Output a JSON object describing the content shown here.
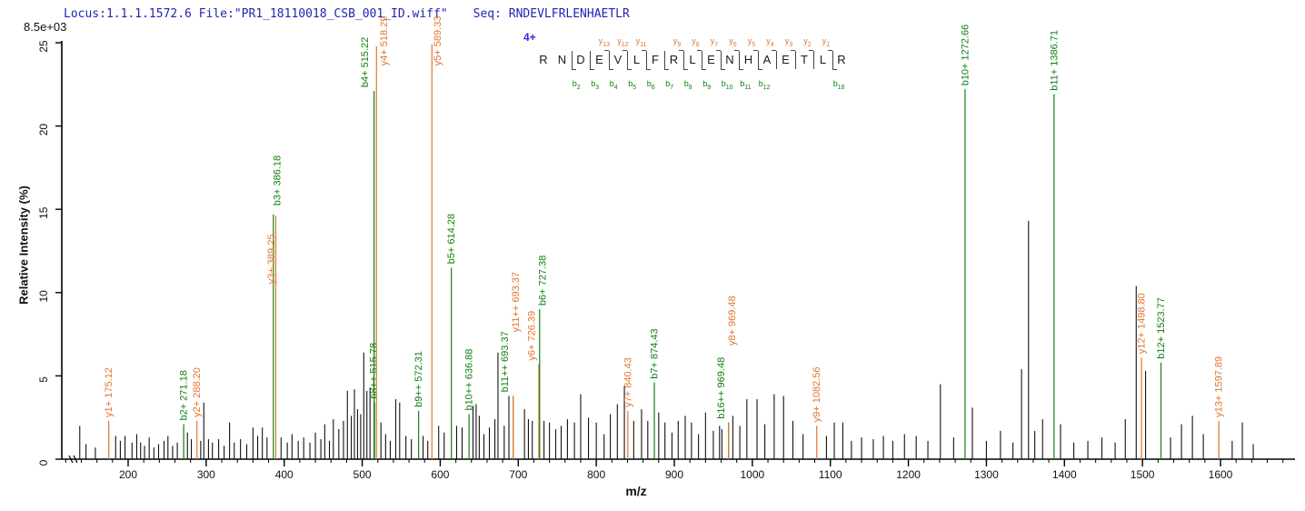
{
  "header": {
    "locus_file": "Locus:1.1.1.1572.6 File:\"PR1_18110018_CSB_001_ID.wiff\"",
    "seq_label": "Seq:",
    "seq_value": "RNDEVLFRLENHAETLR"
  },
  "colors": {
    "b_ion": "#108010",
    "y_ion": "#e0762e",
    "peak": "#111111",
    "header_text": "#2323b5",
    "axis": "#000000"
  },
  "peptide": {
    "charge": "4+",
    "residues": "RNDEVLFRLENHAETLR",
    "y_ions": [
      {
        "t": "y",
        "n": "13",
        "boundary": 4
      },
      {
        "t": "y",
        "n": "12",
        "boundary": 5
      },
      {
        "t": "y",
        "n": "11",
        "boundary": 6
      },
      {
        "t": "y",
        "n": "9",
        "boundary": 8
      },
      {
        "t": "y",
        "n": "8",
        "boundary": 9
      },
      {
        "t": "y",
        "n": "7",
        "boundary": 10
      },
      {
        "t": "y",
        "n": "6",
        "boundary": 11
      },
      {
        "t": "y",
        "n": "5",
        "boundary": 12
      },
      {
        "t": "y",
        "n": "4",
        "boundary": 13
      },
      {
        "t": "y",
        "n": "3",
        "boundary": 14
      },
      {
        "t": "y",
        "n": "2",
        "boundary": 15
      },
      {
        "t": "y",
        "n": "1",
        "boundary": 16
      }
    ],
    "b_ions": [
      {
        "t": "b",
        "n": "2",
        "boundary": 2
      },
      {
        "t": "b",
        "n": "3",
        "boundary": 3
      },
      {
        "t": "b",
        "n": "4",
        "boundary": 4
      },
      {
        "t": "b",
        "n": "5",
        "boundary": 5
      },
      {
        "t": "b",
        "n": "6",
        "boundary": 6
      },
      {
        "t": "b",
        "n": "7",
        "boundary": 7
      },
      {
        "t": "b",
        "n": "8",
        "boundary": 8
      },
      {
        "t": "b",
        "n": "9",
        "boundary": 9
      },
      {
        "t": "b",
        "n": "10",
        "boundary": 10
      },
      {
        "t": "b",
        "n": "11",
        "boundary": 11
      },
      {
        "t": "b",
        "n": "12",
        "boundary": 12
      },
      {
        "t": "b",
        "n": "16",
        "boundary": 16
      }
    ]
  },
  "chart_data": {
    "type": "stick-spectrum",
    "title": "",
    "xlabel": "m/z",
    "ylabel": "Relative Intensity (%)",
    "intensity_scale_note": "8.5e+03",
    "x_range": [
      114,
      1692
    ],
    "ylim": [
      0,
      25
    ],
    "y_ticks": [
      0,
      5,
      10,
      15,
      20,
      25
    ],
    "x_major_ticks": [
      200,
      300,
      400,
      500,
      600,
      700,
      800,
      900,
      1000,
      1100,
      1200,
      1300,
      1400,
      1500,
      1600
    ],
    "x_minor_tick_step": 20,
    "grid": false,
    "annotated_peaks": [
      {
        "ion": "y",
        "label": "y1+ 175.12",
        "mz": 175.12,
        "pct": 2.3
      },
      {
        "ion": "b",
        "label": "b2+ 271.18",
        "mz": 271.18,
        "pct": 2.1
      },
      {
        "ion": "y",
        "label": "y2+ 288.20",
        "mz": 288.2,
        "pct": 2.3
      },
      {
        "ion": "b",
        "label": "b3+ 386.18",
        "mz": 386.18,
        "pct": 14.7,
        "label_dx": 4,
        "label_pct": 15.0
      },
      {
        "ion": "y",
        "label": "y3+ 389.25",
        "mz": 389.25,
        "pct": 14.6,
        "label_dx": -5,
        "label_pct": 10.3
      },
      {
        "ion": "b",
        "label": "b4+ 515.22",
        "mz": 515.22,
        "pct": 22.1,
        "label_dx": -10
      },
      {
        "ion": "b",
        "label": "b8++ 515.78",
        "mz": 515.78,
        "pct": 3.4,
        "label_dx": -1
      },
      {
        "ion": "y",
        "label": "y4+ 518.29",
        "mz": 518.29,
        "pct": 24.8,
        "label_dx": 8,
        "label_pct": 23.4
      },
      {
        "ion": "b",
        "label": "b9++ 572.31",
        "mz": 572.31,
        "pct": 2.9
      },
      {
        "ion": "y",
        "label": "y5+ 589.33",
        "mz": 589.33,
        "pct": 24.9,
        "label_dx": 6,
        "label_pct": 23.4
      },
      {
        "ion": "b",
        "label": "b5+ 614.28",
        "mz": 614.28,
        "pct": 11.5
      },
      {
        "ion": "b",
        "label": "b10++ 636.88",
        "mz": 636.88,
        "pct": 2.7
      },
      {
        "ion": "b",
        "label": "b11++ 693.37",
        "mz": 693.37,
        "pct": 3.8,
        "label_dx": -9
      },
      {
        "ion": "y",
        "label": "y11++ 693.37",
        "mz": 693.37,
        "pct": 3.8,
        "label_dx": 3,
        "label_pct": 7.4
      },
      {
        "ion": "y",
        "label": "y6+ 726.39",
        "mz": 726.39,
        "pct": 5.7,
        "label_dx": -8
      },
      {
        "ion": "b",
        "label": "b6+ 727.38",
        "mz": 727.38,
        "pct": 9.0,
        "label_dx": 3
      },
      {
        "ion": "y",
        "label": "y7+ 840.43",
        "mz": 840.43,
        "pct": 2.9
      },
      {
        "ion": "b",
        "label": "b7+ 874.43",
        "mz": 874.43,
        "pct": 4.6
      },
      {
        "ion": "b",
        "label": "b16++ 969.48",
        "mz": 969.48,
        "pct": 2.2,
        "label_dx": -8
      },
      {
        "ion": "y",
        "label": "y8+ 969.48",
        "mz": 969.48,
        "pct": 2.2,
        "label_dx": 4,
        "label_pct": 6.6
      },
      {
        "ion": "y",
        "label": "y9+ 1082.56",
        "mz": 1082.56,
        "pct": 2.0
      },
      {
        "ion": "b",
        "label": "b10+ 1272.66",
        "mz": 1272.66,
        "pct": 22.2
      },
      {
        "ion": "b",
        "label": "b11+ 1386.71",
        "mz": 1386.71,
        "pct": 21.9
      },
      {
        "ion": "y",
        "label": "y12+ 1498.80",
        "mz": 1498.8,
        "pct": 6.1
      },
      {
        "ion": "b",
        "label": "b12+ 1523.77",
        "mz": 1523.77,
        "pct": 5.8
      },
      {
        "ion": "y",
        "label": "y13+ 1597.89",
        "mz": 1597.89,
        "pct": 2.3
      }
    ],
    "background_peaks": [
      [
        138,
        2.0
      ],
      [
        146,
        0.9
      ],
      [
        158,
        0.7
      ],
      [
        184,
        1.4
      ],
      [
        190,
        1.1
      ],
      [
        196,
        1.4
      ],
      [
        205,
        1.0
      ],
      [
        211,
        1.5
      ],
      [
        216,
        1.0
      ],
      [
        221,
        0.8
      ],
      [
        227,
        1.3
      ],
      [
        233,
        0.7
      ],
      [
        239,
        0.9
      ],
      [
        246,
        1.1
      ],
      [
        251,
        1.4
      ],
      [
        257,
        0.8
      ],
      [
        263,
        1.0
      ],
      [
        276,
        1.6
      ],
      [
        281,
        1.2
      ],
      [
        293,
        1.1
      ],
      [
        297,
        3.4
      ],
      [
        303,
        1.2
      ],
      [
        308,
        1.0
      ],
      [
        316,
        1.2
      ],
      [
        323,
        0.8
      ],
      [
        330,
        2.2
      ],
      [
        336,
        1.0
      ],
      [
        344,
        1.2
      ],
      [
        352,
        0.9
      ],
      [
        360,
        1.9
      ],
      [
        366,
        1.4
      ],
      [
        372,
        1.9
      ],
      [
        378,
        1.3
      ],
      [
        396,
        1.3
      ],
      [
        404,
        1.0
      ],
      [
        410,
        1.5
      ],
      [
        418,
        1.1
      ],
      [
        425,
        1.3
      ],
      [
        433,
        1.0
      ],
      [
        440,
        1.6
      ],
      [
        447,
        1.2
      ],
      [
        452,
        2.1
      ],
      [
        458,
        1.1
      ],
      [
        463,
        2.4
      ],
      [
        470,
        1.8
      ],
      [
        476,
        2.3
      ],
      [
        481,
        4.1
      ],
      [
        486,
        2.6
      ],
      [
        490,
        4.2
      ],
      [
        494,
        3.0
      ],
      [
        498,
        2.7
      ],
      [
        502,
        6.4
      ],
      [
        506,
        4.1
      ],
      [
        510,
        4.3
      ],
      [
        524,
        2.2
      ],
      [
        530,
        1.5
      ],
      [
        536,
        1.1
      ],
      [
        543,
        3.6
      ],
      [
        548,
        3.4
      ],
      [
        556,
        1.4
      ],
      [
        563,
        1.2
      ],
      [
        578,
        1.4
      ],
      [
        584,
        1.1
      ],
      [
        598,
        2.0
      ],
      [
        605,
        1.6
      ],
      [
        621,
        2.0
      ],
      [
        628,
        1.9
      ],
      [
        642,
        3.2
      ],
      [
        646,
        3.3
      ],
      [
        650,
        2.6
      ],
      [
        656,
        1.5
      ],
      [
        663,
        1.9
      ],
      [
        670,
        2.4
      ],
      [
        674,
        6.4
      ],
      [
        682,
        2.0
      ],
      [
        688,
        3.8
      ],
      [
        708,
        3.0
      ],
      [
        713,
        2.4
      ],
      [
        718,
        2.3
      ],
      [
        733,
        2.3
      ],
      [
        740,
        2.2
      ],
      [
        748,
        1.8
      ],
      [
        755,
        2.0
      ],
      [
        763,
        2.4
      ],
      [
        772,
        2.2
      ],
      [
        780,
        3.9
      ],
      [
        790,
        2.5
      ],
      [
        800,
        2.2
      ],
      [
        810,
        1.5
      ],
      [
        818,
        2.7
      ],
      [
        827,
        3.3
      ],
      [
        836,
        4.4
      ],
      [
        848,
        2.3
      ],
      [
        858,
        3.0
      ],
      [
        866,
        2.3
      ],
      [
        880,
        2.8
      ],
      [
        888,
        2.2
      ],
      [
        897,
        1.6
      ],
      [
        905,
        2.3
      ],
      [
        914,
        2.6
      ],
      [
        922,
        2.2
      ],
      [
        931,
        1.5
      ],
      [
        940,
        2.8
      ],
      [
        950,
        1.7
      ],
      [
        958,
        2.0
      ],
      [
        961,
        1.8
      ],
      [
        975,
        2.6
      ],
      [
        984,
        2.0
      ],
      [
        993,
        3.6
      ],
      [
        1006,
        3.6
      ],
      [
        1016,
        2.1
      ],
      [
        1028,
        3.9
      ],
      [
        1040,
        3.8
      ],
      [
        1052,
        2.3
      ],
      [
        1065,
        1.5
      ],
      [
        1095,
        1.4
      ],
      [
        1105,
        2.2
      ],
      [
        1116,
        2.2
      ],
      [
        1127,
        1.1
      ],
      [
        1140,
        1.3
      ],
      [
        1155,
        1.2
      ],
      [
        1168,
        1.4
      ],
      [
        1180,
        1.1
      ],
      [
        1195,
        1.5
      ],
      [
        1210,
        1.4
      ],
      [
        1225,
        1.1
      ],
      [
        1241,
        4.5
      ],
      [
        1258,
        1.3
      ],
      [
        1282,
        3.1
      ],
      [
        1300,
        1.1
      ],
      [
        1318,
        1.7
      ],
      [
        1334,
        1.0
      ],
      [
        1345,
        5.4
      ],
      [
        1354,
        14.3
      ],
      [
        1362,
        1.7
      ],
      [
        1372,
        2.4
      ],
      [
        1395,
        2.1
      ],
      [
        1412,
        1.0
      ],
      [
        1430,
        1.1
      ],
      [
        1448,
        1.3
      ],
      [
        1465,
        1.0
      ],
      [
        1478,
        2.4
      ],
      [
        1492,
        10.4
      ],
      [
        1504,
        5.3
      ],
      [
        1536,
        1.3
      ],
      [
        1550,
        2.1
      ],
      [
        1564,
        2.6
      ],
      [
        1578,
        1.5
      ],
      [
        1615,
        1.1
      ],
      [
        1628,
        2.2
      ],
      [
        1642,
        0.9
      ]
    ]
  }
}
